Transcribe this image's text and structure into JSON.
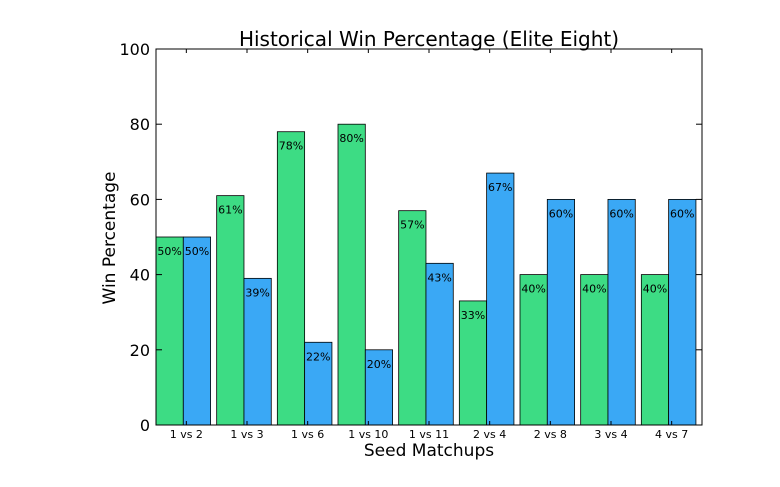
{
  "chart_data": {
    "type": "bar",
    "title": "Historical Win Percentage (Elite Eight)",
    "xlabel": "Seed Matchups",
    "ylabel": "Win Percentage",
    "ylim": [
      0,
      100
    ],
    "yticks": [
      "0",
      "20",
      "40",
      "60",
      "80",
      "100"
    ],
    "categories": [
      "1 vs 2",
      "1 vs 3",
      "1 vs 6",
      "1 vs 10",
      "1 vs 11",
      "2 vs 4",
      "2 vs 8",
      "3 vs 4",
      "4 vs 7"
    ],
    "series": [
      {
        "values": [
          50,
          61,
          78,
          80,
          57,
          33,
          40,
          40,
          40
        ],
        "color": "#3ddc84",
        "labels": [
          "50%",
          "61%",
          "78%",
          "80%",
          "57%",
          "33%",
          "40%",
          "40%",
          "40%"
        ]
      },
      {
        "values": [
          50,
          39,
          22,
          20,
          43,
          67,
          60,
          60,
          60
        ],
        "color": "#3aa8f5",
        "labels": [
          "50%",
          "39%",
          "22%",
          "20%",
          "43%",
          "67%",
          "60%",
          "60%",
          "60%"
        ]
      }
    ],
    "grid": false,
    "legend": "none"
  }
}
